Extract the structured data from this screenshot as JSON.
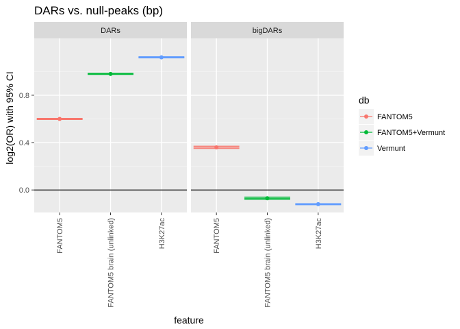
{
  "chart_data": {
    "type": "scatter",
    "title": "DARs vs. null-peaks (bp)",
    "xlabel": "feature",
    "ylabel": "log2(OR) with 95% CI",
    "ylim": [
      -0.19,
      1.28
    ],
    "yticks": [
      0.0,
      0.4,
      0.8
    ],
    "ytick_labels": [
      "0.0",
      "0.4",
      "0.8"
    ],
    "hline": 0,
    "categories": [
      "FANTOM5",
      "FANTOM5 brain (unlinked)",
      "H3K27ac"
    ],
    "legend": {
      "title": "db",
      "position": "right",
      "entries": [
        {
          "name": "FANTOM5",
          "color": "#F8766D"
        },
        {
          "name": "FANTOM5+Vermunt",
          "color": "#00BA38"
        },
        {
          "name": "Vermunt",
          "color": "#619CFF"
        }
      ]
    },
    "panels": [
      {
        "strip": "DARs",
        "points": [
          {
            "feature": "FANTOM5",
            "db": "FANTOM5",
            "y": 0.6,
            "ci_low": 0.595,
            "ci_high": 0.605
          },
          {
            "feature": "FANTOM5 brain (unlinked)",
            "db": "FANTOM5+Vermunt",
            "y": 0.98,
            "ci_low": 0.975,
            "ci_high": 0.985
          },
          {
            "feature": "H3K27ac",
            "db": "Vermunt",
            "y": 1.12,
            "ci_low": 1.115,
            "ci_high": 1.125
          }
        ]
      },
      {
        "strip": "bigDARs",
        "points": [
          {
            "feature": "FANTOM5",
            "db": "FANTOM5",
            "y": 0.36,
            "ci_low": 0.35,
            "ci_high": 0.37
          },
          {
            "feature": "FANTOM5 brain (unlinked)",
            "db": "FANTOM5+Vermunt",
            "y": -0.07,
            "ci_low": -0.08,
            "ci_high": -0.06
          },
          {
            "feature": "H3K27ac",
            "db": "Vermunt",
            "y": -0.12,
            "ci_low": -0.125,
            "ci_high": -0.115
          }
        ]
      }
    ]
  }
}
